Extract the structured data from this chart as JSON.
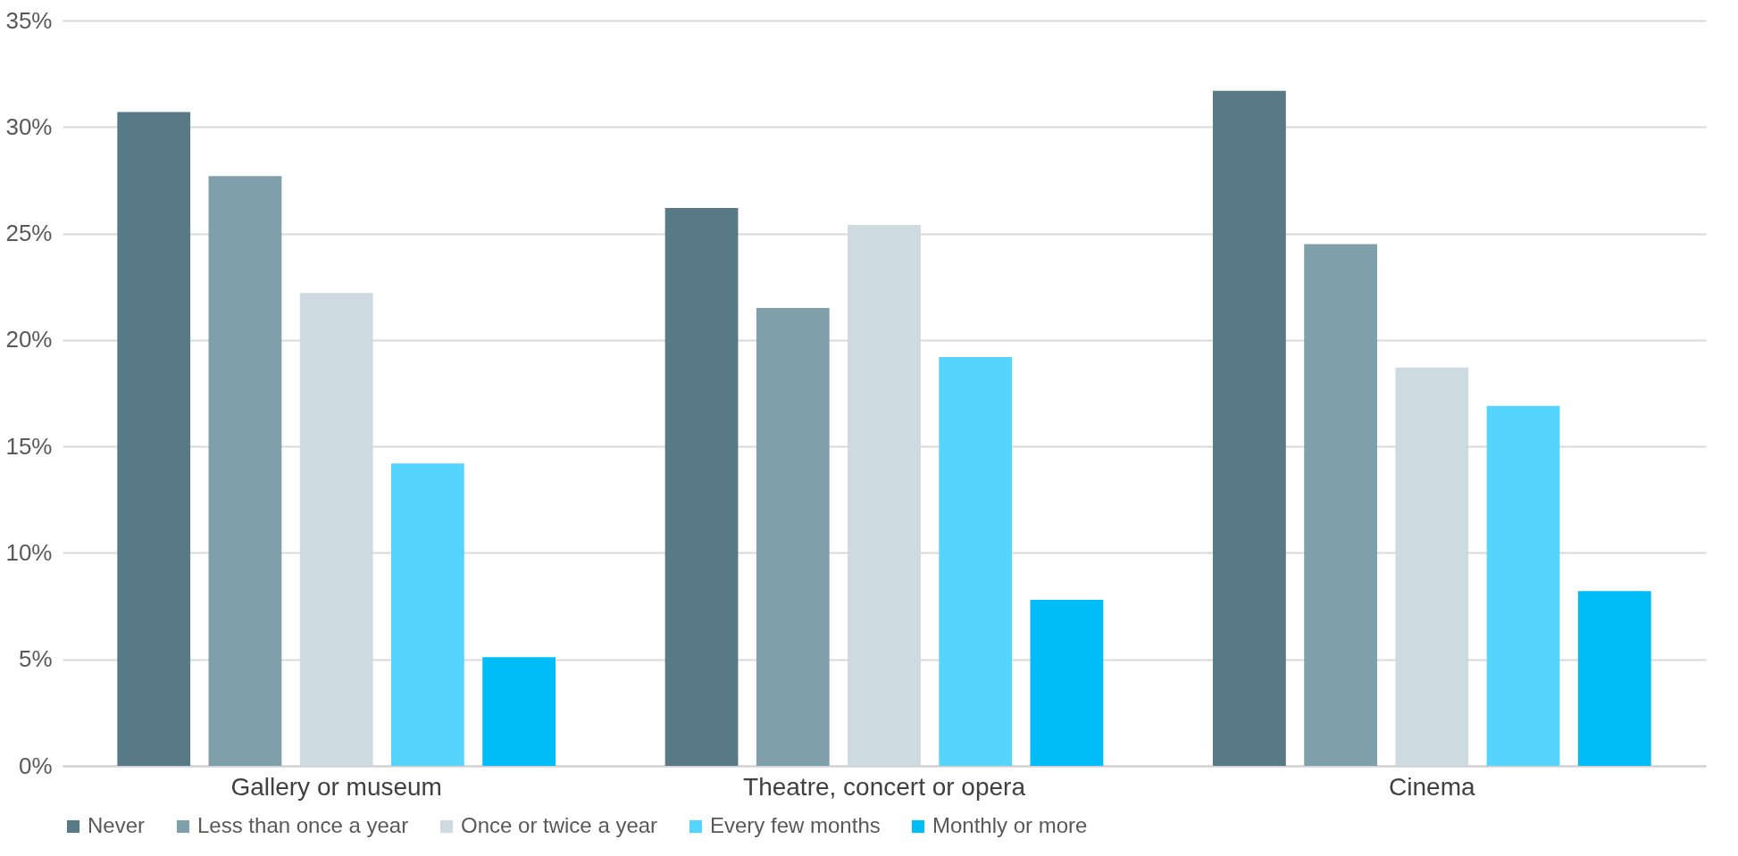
{
  "chart_data": {
    "type": "bar",
    "categories": [
      "Gallery or museum",
      "Theatre, concert or opera",
      "Cinema"
    ],
    "series": [
      {
        "name": "Never",
        "color": "#587a86",
        "values": [
          30.7,
          26.2,
          31.7
        ]
      },
      {
        "name": "Less than once a year",
        "color": "#7fa0ab",
        "values": [
          27.7,
          21.5,
          24.5
        ]
      },
      {
        "name": "Once or twice a year",
        "color": "#cddae0",
        "values": [
          22.2,
          25.4,
          18.7
        ]
      },
      {
        "name": "Every few months",
        "color": "#55d4fe",
        "values": [
          14.2,
          19.2,
          16.9
        ]
      },
      {
        "name": "Monthly or more",
        "color": "#00bdf8",
        "values": [
          5.1,
          7.8,
          8.2
        ]
      }
    ],
    "ylim": [
      0,
      35
    ],
    "yticks": [
      {
        "value": 0,
        "label": "0%"
      },
      {
        "value": 5,
        "label": "5%"
      },
      {
        "value": 10,
        "label": "10%"
      },
      {
        "value": 15,
        "label": "15%"
      },
      {
        "value": 20,
        "label": "20%"
      },
      {
        "value": 25,
        "label": "25%"
      },
      {
        "value": 30,
        "label": "30%"
      },
      {
        "value": 35,
        "label": "35%"
      }
    ],
    "grid": "y",
    "legend": "bottom"
  }
}
